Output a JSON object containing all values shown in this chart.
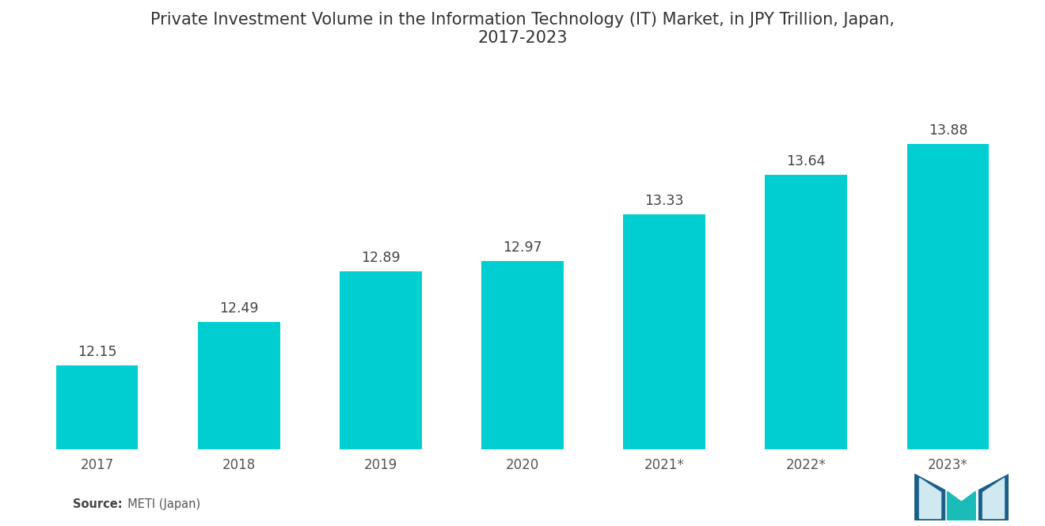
{
  "title": "Private Investment Volume in the Information Technology (IT) Market, in JPY Trillion, Japan,\n2017-2023",
  "categories": [
    "2017",
    "2018",
    "2019",
    "2020",
    "2021*",
    "2022*",
    "2023*"
  ],
  "values": [
    12.15,
    12.49,
    12.89,
    12.97,
    13.33,
    13.64,
    13.88
  ],
  "bar_color": "#00CED1",
  "background_color": "#ffffff",
  "title_fontsize": 15,
  "label_fontsize": 12.5,
  "tick_fontsize": 12,
  "source_bold": "Source:",
  "source_normal": "  METI (Japan)",
  "ylim_min": 11.5,
  "ylim_max": 14.5,
  "bar_width": 0.58
}
